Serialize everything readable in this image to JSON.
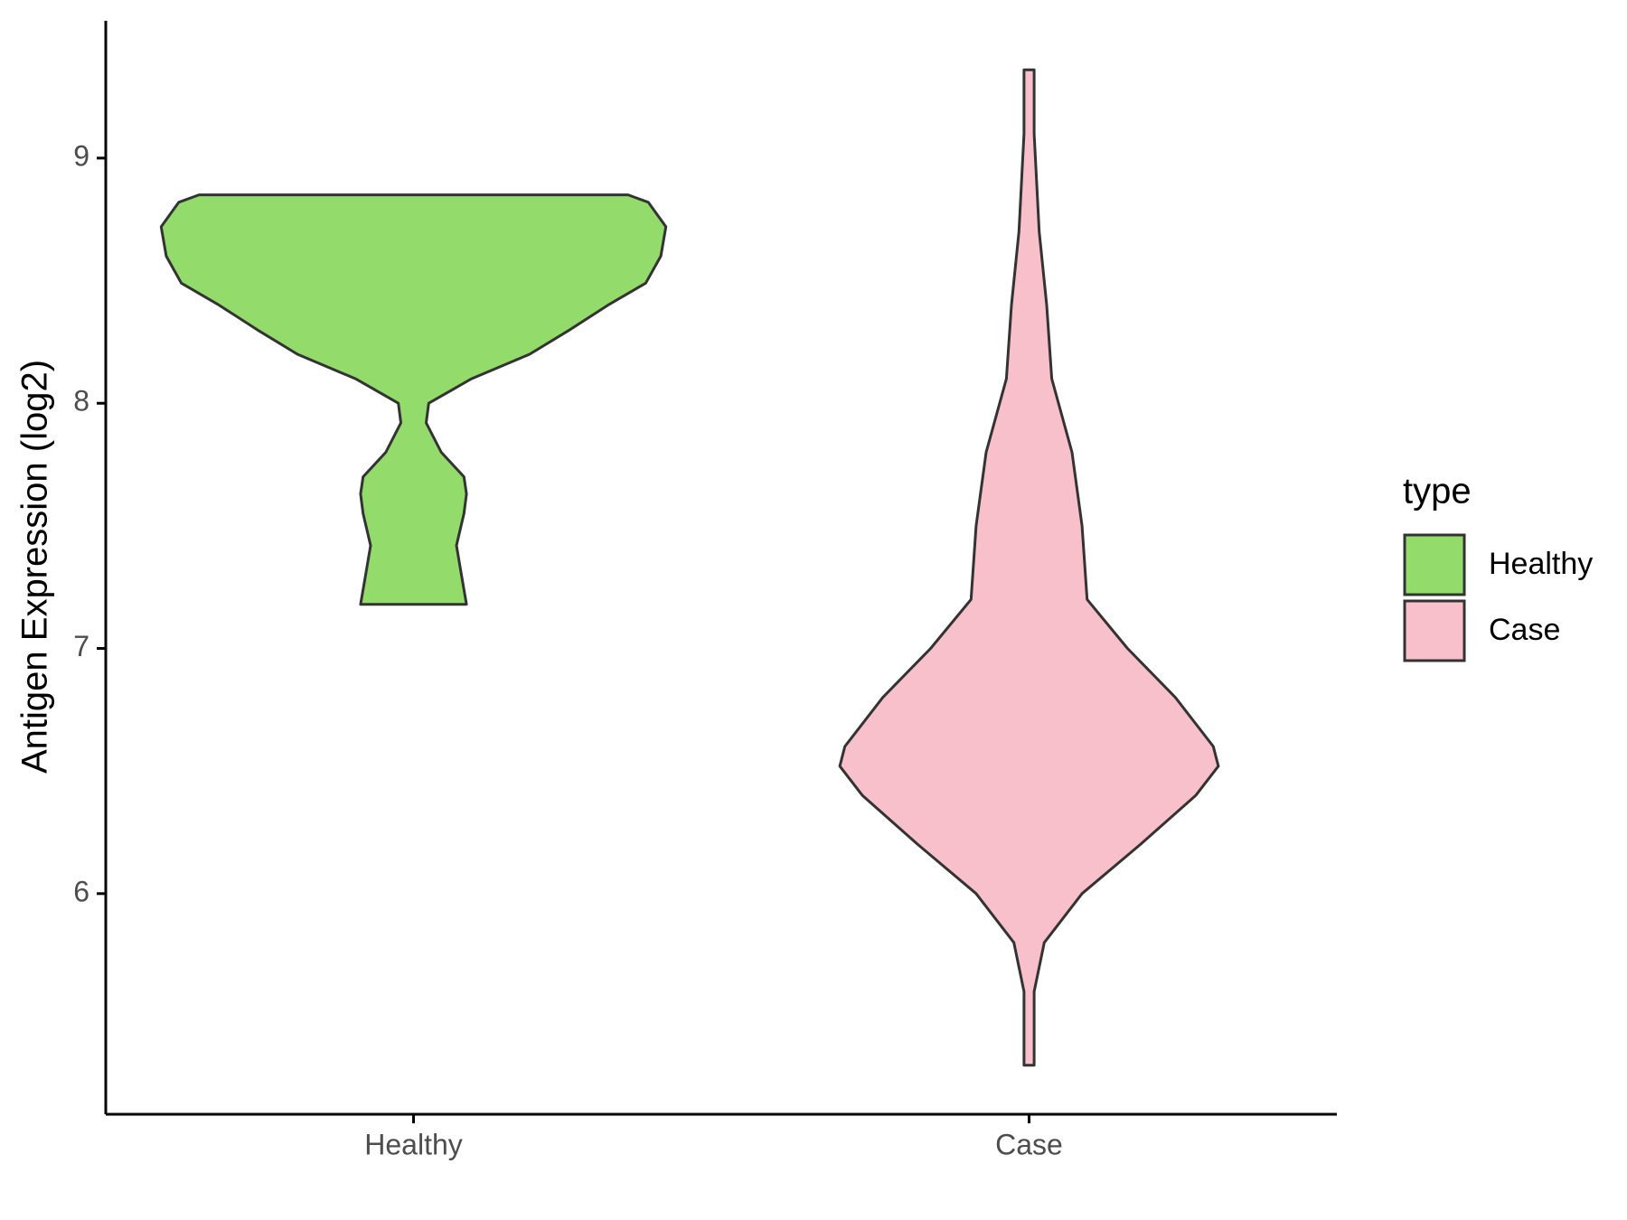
{
  "chart_data": {
    "type": "violin",
    "ylabel": "Antigen Expression (log2)",
    "categories": [
      "Healthy",
      "Case"
    ],
    "legend_title": "type",
    "ylim": [
      5.1,
      9.56
    ],
    "yticks": [
      6,
      7,
      8,
      9
    ],
    "series": [
      {
        "name": "Healthy",
        "color": "#93dc6b",
        "y": [
          8.85,
          8.82,
          8.72,
          8.6,
          8.49,
          8.4,
          8.3,
          8.2,
          8.1,
          8.0,
          7.92,
          7.8,
          7.7,
          7.63,
          7.55,
          7.42,
          7.3,
          7.18
        ],
        "widths": [
          0.85,
          0.93,
          1.0,
          0.98,
          0.92,
          0.77,
          0.62,
          0.46,
          0.23,
          0.06,
          0.05,
          0.11,
          0.2,
          0.21,
          0.2,
          0.17,
          0.19,
          0.21
        ]
      },
      {
        "name": "Case",
        "color": "#f8c0cb",
        "y": [
          9.36,
          9.1,
          8.7,
          8.4,
          8.1,
          7.8,
          7.5,
          7.2,
          7.0,
          6.8,
          6.6,
          6.52,
          6.4,
          6.2,
          6.0,
          5.8,
          5.6,
          5.3
        ],
        "widths": [
          0.02,
          0.02,
          0.04,
          0.07,
          0.09,
          0.17,
          0.21,
          0.23,
          0.39,
          0.58,
          0.73,
          0.75,
          0.66,
          0.44,
          0.21,
          0.06,
          0.02,
          0.02
        ]
      }
    ]
  }
}
